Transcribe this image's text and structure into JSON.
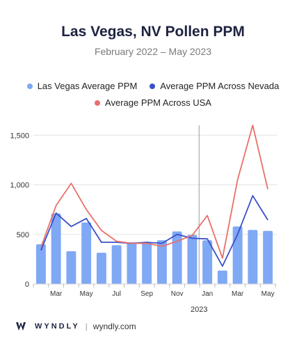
{
  "chart_data": {
    "type": "bar",
    "title": "Las Vegas, NV Pollen PPM",
    "subtitle": "February 2022 – May 2023",
    "ylim": [
      0,
      1600
    ],
    "yticks": [
      0,
      500,
      1000,
      1500
    ],
    "ytick_labels": [
      "0",
      "500",
      "1,000",
      "1,500"
    ],
    "categories": [
      "Feb 2022",
      "Mar 2022",
      "Apr 2022",
      "May 2022",
      "Jun 2022",
      "Jul 2022",
      "Aug 2022",
      "Sep 2022",
      "Oct 2022",
      "Nov 2022",
      "Dec 2022",
      "Jan 2023",
      "Feb 2023",
      "Mar 2023",
      "Apr 2023",
      "May 2023"
    ],
    "xtick_labels": [
      "",
      "Mar",
      "",
      "May",
      "",
      "Jul",
      "",
      "Sep",
      "",
      "Nov",
      "",
      "Jan",
      "",
      "Mar",
      "",
      "May"
    ],
    "year_label": "2023",
    "series": [
      {
        "name": "Las Vegas Average PPM",
        "kind": "bar",
        "color": "#7fa8f5",
        "values": [
          400,
          710,
          330,
          620,
          315,
          390,
          420,
          415,
          440,
          530,
          495,
          440,
          135,
          580,
          545,
          535
        ]
      },
      {
        "name": "Average PPM Across Nevada",
        "kind": "line",
        "color": "#3a4fc8",
        "values": [
          340,
          715,
          580,
          660,
          420,
          420,
          410,
          420,
          410,
          500,
          460,
          455,
          180,
          500,
          890,
          645
        ]
      },
      {
        "name": "Average PPM Across USA",
        "kind": "line",
        "color": "#e8706a",
        "values": [
          370,
          790,
          1015,
          750,
          540,
          430,
          410,
          410,
          380,
          430,
          490,
          690,
          260,
          1050,
          1600,
          955
        ]
      }
    ],
    "legend_position": "top"
  },
  "footer": {
    "brand": "WYNDLY",
    "separator": "|",
    "site": "wyndly.com"
  }
}
